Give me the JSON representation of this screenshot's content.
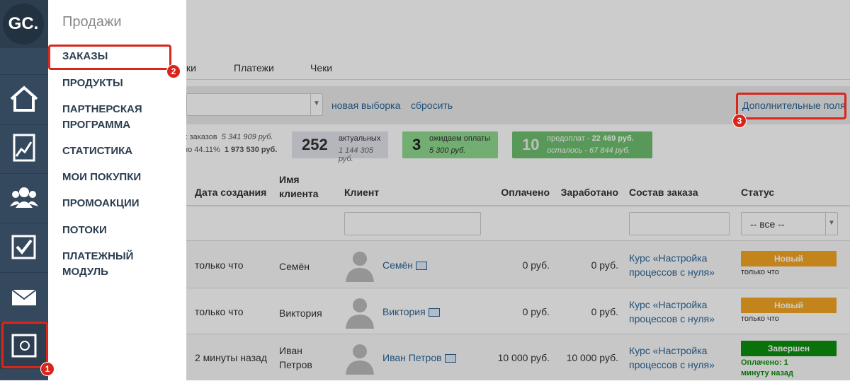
{
  "sidebar": {
    "logo": "GC."
  },
  "menu": {
    "title": "Продажи",
    "items": [
      "ЗАКАЗЫ",
      "ПРОДУКТЫ",
      "ПАРТНЕРСКАЯ ПРОГРАММА",
      "СТАТИСТИКА",
      "МОИ ПОКУПКИ",
      "ПРОМОАКЦИИ",
      "ПОТОКИ",
      "ПЛАТЕЖНЫЙ МОДУЛЬ"
    ]
  },
  "badges": [
    "1",
    "2",
    "3"
  ],
  "tabs": [
    "ки",
    "Платежи",
    "Чеки"
  ],
  "filter": {
    "new_selection": "новая выборка",
    "reset": "сбросить",
    "extra_fields": "Дополнительные поля"
  },
  "stats": {
    "total_label": "х заказов",
    "total_sum": "5 341 909 руб.",
    "paid_label": "но 44.11%",
    "paid_sum": "1 973 530 руб.",
    "actual": {
      "count": "252",
      "label": "актуальных",
      "sum": "1 144 305 руб."
    },
    "awaiting": {
      "count": "3",
      "label": "ожидаем оплаты",
      "sum": "5 300 руб."
    },
    "prepaid": {
      "count": "10",
      "line1_label": "предоплат - ",
      "line1_sum": "22 469 руб.",
      "line2": "осталось - 67 844 руб."
    }
  },
  "table": {
    "headers": [
      "Дата создания",
      "Имя клиента",
      "Клиент",
      "Оплачено",
      "Заработано",
      "Состав заказа",
      "Статус"
    ],
    "status_filter": "-- все --",
    "rows": [
      {
        "date": "только что",
        "name": "Семён",
        "client": "Семён",
        "paid": "0 руб.",
        "earned": "0 руб.",
        "order": "Курс «Настройка процессов с нуля»",
        "status": "Новый",
        "status_note": "только что"
      },
      {
        "date": "только что",
        "name": "Виктория",
        "client": "Виктория",
        "paid": "0 руб.",
        "earned": "0 руб.",
        "order": "Курс «Настройка процессов с нуля»",
        "status": "Новый",
        "status_note": "только что"
      },
      {
        "date": "2 минуты назад",
        "name": "Иван Петров",
        "client": "Иван Петров",
        "paid": "10 000 руб.",
        "earned": "10 000 руб.",
        "order": "Курс «Настройка процессов с нуля»",
        "status": "Завершен",
        "status_note": "Оплачено: 1 минуту назад"
      }
    ]
  }
}
